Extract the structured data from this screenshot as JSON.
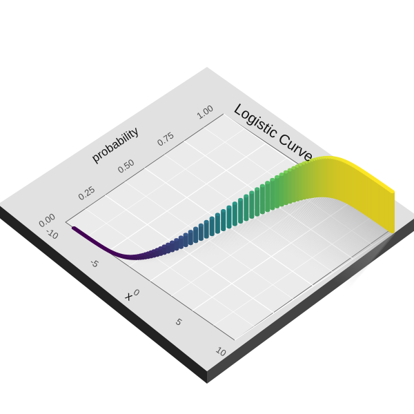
{
  "chart_data": {
    "type": "line",
    "render_style": "isometric 3D view; points drawn as extruded columns colored by y (viridis)",
    "title": "Logistic Curve",
    "xlabel": "x",
    "ylabel": "probability",
    "xlim": [
      -10,
      10
    ],
    "ylim": [
      0,
      1
    ],
    "x_ticks": [
      "-10",
      "-5",
      "0",
      "5",
      "10"
    ],
    "y_ticks": [
      "0.00",
      "0.25",
      "0.50",
      "0.75",
      "1.00"
    ],
    "grid": true,
    "legend": "none",
    "function": "y = 1 / (1 + exp(-x))",
    "x": [
      -10,
      -9,
      -8,
      -7,
      -6,
      -5,
      -4,
      -3,
      -2,
      -1,
      0,
      1,
      2,
      3,
      4,
      5,
      6,
      7,
      8,
      9,
      10
    ],
    "y": [
      5e-05,
      0.0001,
      0.0003,
      0.0009,
      0.0025,
      0.0067,
      0.018,
      0.047,
      0.119,
      0.269,
      0.5,
      0.731,
      0.881,
      0.953,
      0.982,
      0.9933,
      0.9975,
      0.9991,
      0.9997,
      0.9999,
      0.99995
    ],
    "colormap": [
      "#440154",
      "#3b528b",
      "#21918c",
      "#5ec962",
      "#fde725"
    ]
  }
}
